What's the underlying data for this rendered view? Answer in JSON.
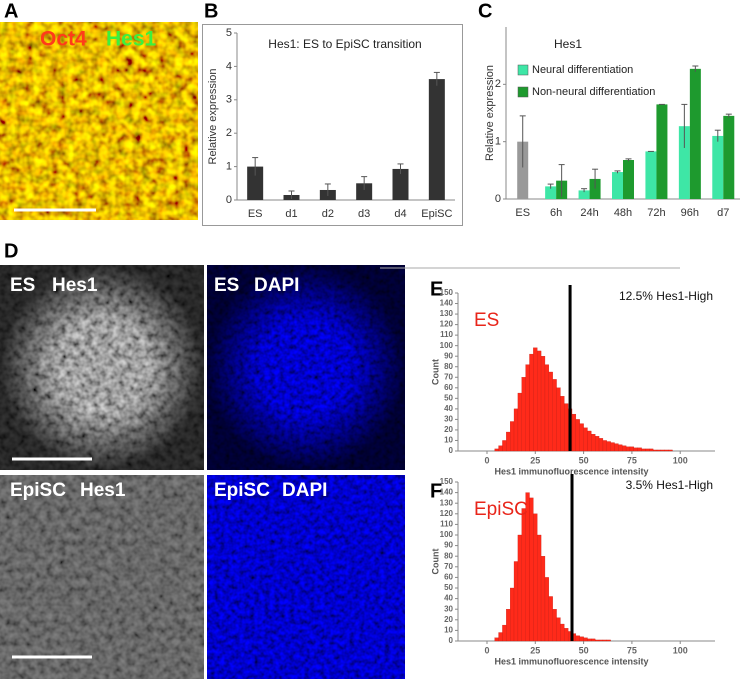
{
  "panel_labels": [
    "A",
    "B",
    "C",
    "D",
    "E",
    "F"
  ],
  "panel_a": {
    "stains": [
      "Oct4",
      "Hes1"
    ]
  },
  "panel_d": {
    "images": [
      [
        "ES",
        "Hes1"
      ],
      [
        "ES",
        "DAPI"
      ],
      [
        "EpiSC",
        "Hes1"
      ],
      [
        "EpiSC",
        "DAPI"
      ]
    ]
  },
  "chart_data": [
    {
      "type": "bar",
      "title": "Hes1: ES to EpiSC transition",
      "ylabel": "Relative expression",
      "categories": [
        "ES",
        "d1",
        "d2",
        "d3",
        "d4",
        "EpiSC"
      ],
      "values": [
        1.0,
        0.15,
        0.3,
        0.5,
        0.93,
        3.62
      ],
      "errors": [
        0.27,
        0.12,
        0.18,
        0.2,
        0.15,
        0.2
      ],
      "color": "#333333",
      "ylim": [
        0,
        5
      ],
      "yticks": [
        0,
        1,
        2,
        3,
        4,
        5
      ]
    },
    {
      "type": "grouped_bar",
      "title": "Hes1",
      "ylabel": "Relative expression",
      "categories": [
        "ES",
        "6h",
        "24h",
        "48h",
        "72h",
        "96h",
        "d7"
      ],
      "series": [
        {
          "color": "#999999",
          "values": [
            1.0,
            null,
            null,
            null,
            null,
            null,
            null
          ],
          "errors": [
            0.45,
            null,
            null,
            null,
            null,
            null,
            null
          ]
        },
        {
          "name": "Neural differentiation",
          "color": "#3ee6a6",
          "values": [
            null,
            0.22,
            0.15,
            0.47,
            0.83,
            1.27,
            1.1
          ],
          "errors": [
            null,
            0.04,
            0.03,
            0.02,
            0,
            0.38,
            0.1
          ]
        },
        {
          "name": "Non-neural differentiation",
          "color": "#1e9a2e",
          "values": [
            null,
            0.32,
            0.35,
            0.68,
            1.65,
            2.27,
            1.45
          ],
          "errors": [
            null,
            0.28,
            0.17,
            0.02,
            0,
            0.05,
            0.03
          ]
        }
      ],
      "ylim": [
        0,
        3
      ],
      "yticks": [
        0,
        1,
        2
      ]
    },
    {
      "type": "histogram",
      "label": "ES",
      "annotation": "12.5%  Hes1-High",
      "ylabel": "Count",
      "xlabel": "Hes1 immunofluorescence intensity",
      "bins": [
        0,
        2,
        4,
        6,
        8,
        10,
        12,
        14,
        16,
        18,
        20,
        22,
        24,
        26,
        28,
        30,
        32,
        34,
        36,
        38,
        40,
        42,
        44,
        46,
        48,
        50,
        52,
        54,
        56,
        58,
        60,
        62,
        64,
        66,
        68,
        70,
        72,
        74,
        76,
        78,
        80,
        82,
        84,
        86,
        88,
        90,
        92,
        94,
        96,
        98,
        100,
        102,
        104,
        106,
        108,
        110
      ],
      "counts": [
        0,
        0,
        2,
        5,
        10,
        18,
        28,
        40,
        55,
        70,
        82,
        92,
        98,
        95,
        90,
        82,
        75,
        68,
        60,
        52,
        45,
        40,
        35,
        30,
        26,
        22,
        19,
        16,
        14,
        12,
        10,
        9,
        8,
        7,
        6,
        5,
        4,
        4,
        3,
        3,
        2,
        2,
        2,
        1,
        1,
        1,
        1,
        1,
        0,
        0,
        0,
        0,
        0,
        0,
        0
      ],
      "threshold": 43,
      "color": "#ff2a1a",
      "xlim": [
        -15,
        118
      ],
      "xticks": [
        0,
        25,
        50,
        75,
        100
      ],
      "ylim": [
        0,
        150
      ],
      "yticks": [
        0,
        10,
        20,
        30,
        40,
        50,
        60,
        70,
        80,
        90,
        100,
        110,
        120,
        130,
        140,
        150
      ]
    },
    {
      "type": "histogram",
      "label": "EpiSC",
      "annotation": "3.5%  Hes1-High",
      "ylabel": "Count",
      "xlabel": "Hes1 immunofluorescence intensity",
      "bins": [
        0,
        2,
        4,
        6,
        8,
        10,
        12,
        14,
        16,
        18,
        20,
        22,
        24,
        26,
        28,
        30,
        32,
        34,
        36,
        38,
        40,
        42,
        44,
        46,
        48,
        50,
        52,
        54,
        56,
        58,
        60,
        62,
        64,
        66,
        68,
        70,
        72,
        74,
        76,
        78,
        80,
        82,
        84,
        86,
        88,
        90,
        92,
        94,
        96,
        98,
        100,
        102,
        104,
        106,
        108,
        110
      ],
      "counts": [
        0,
        0,
        3,
        8,
        15,
        30,
        50,
        75,
        100,
        125,
        140,
        135,
        120,
        100,
        80,
        60,
        42,
        30,
        22,
        16,
        12,
        9,
        7,
        5,
        4,
        3,
        2,
        2,
        1,
        1,
        1,
        1,
        0,
        0,
        0,
        0,
        0,
        0,
        0,
        0,
        0,
        0,
        0,
        0,
        0,
        0,
        0,
        0,
        0,
        0,
        0,
        0,
        0,
        0,
        0
      ],
      "threshold": 44,
      "color": "#ff2a1a",
      "xlim": [
        -15,
        118
      ],
      "xticks": [
        0,
        25,
        50,
        75,
        100
      ],
      "ylim": [
        0,
        150
      ],
      "yticks": [
        0,
        10,
        20,
        30,
        40,
        50,
        60,
        70,
        80,
        90,
        100,
        110,
        120,
        130,
        140,
        150
      ]
    }
  ]
}
